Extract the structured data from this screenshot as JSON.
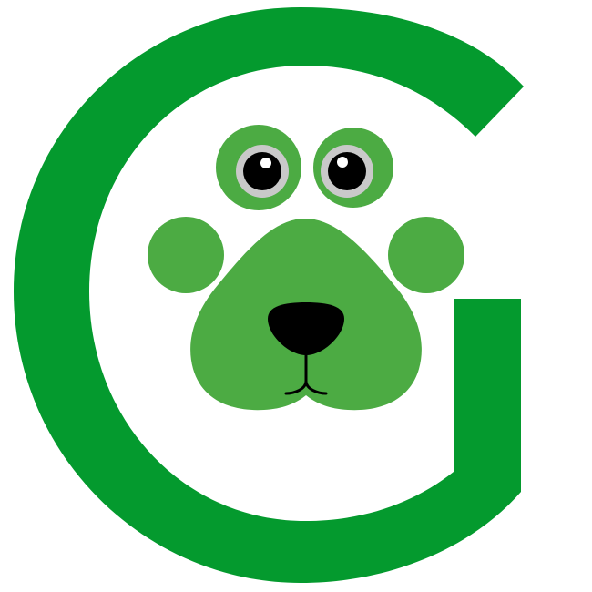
{
  "logo": {
    "letter": "G",
    "icon": "dog-paw-face-icon",
    "colors": {
      "background": "#ffffff",
      "g_green": "#049a2e",
      "paw_green": "#4cab43",
      "eye_ring": "#c9c9c9",
      "pupil": "#000000",
      "highlight": "#ffffff",
      "nose": "#000000"
    }
  }
}
